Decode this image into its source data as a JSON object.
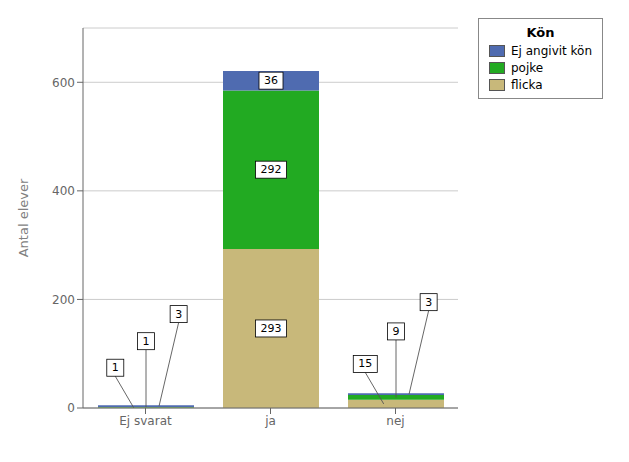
{
  "chart_data": {
    "type": "bar",
    "stacked": true,
    "data_labels": true,
    "categories": [
      "Ej svarat",
      "ja",
      "nej"
    ],
    "series": [
      {
        "name": "flicka",
        "color": "#C8B87A",
        "values": [
          1,
          293,
          15
        ]
      },
      {
        "name": "pojke",
        "color": "#22AA22",
        "values": [
          1,
          292,
          9
        ]
      },
      {
        "name": "Ej angivit kön",
        "color": "#4F6BB0",
        "values": [
          3,
          36,
          3
        ]
      }
    ],
    "ylabel": "Antal elever",
    "ylim": [
      0,
      700
    ],
    "yticks": [
      0,
      200,
      400,
      600
    ],
    "grid": true,
    "legend": "right",
    "legend_title": "Kön"
  }
}
